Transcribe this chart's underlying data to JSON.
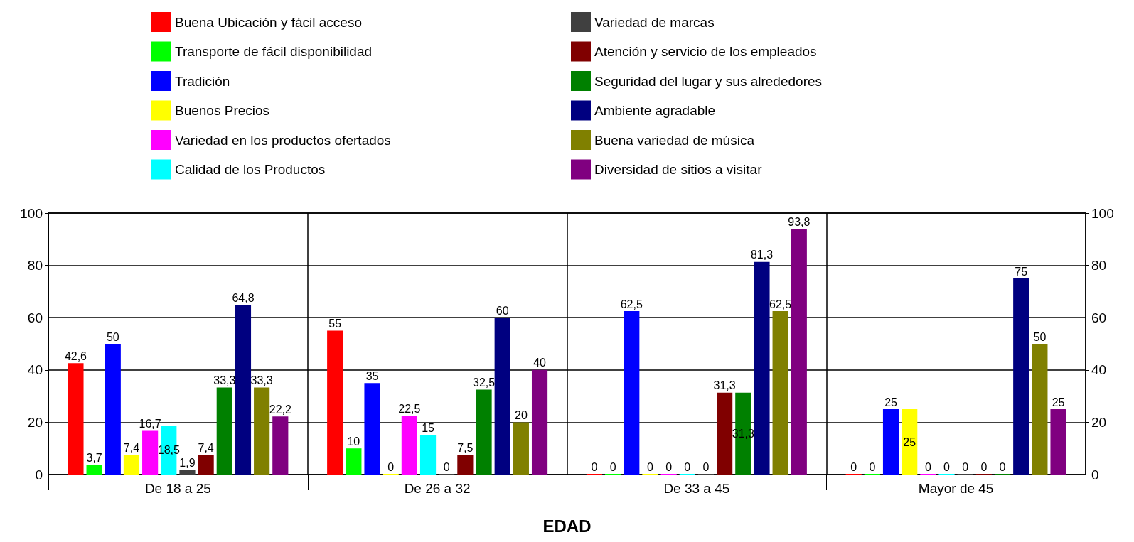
{
  "chart_data": {
    "type": "bar",
    "xlabel": "EDAD",
    "categories": [
      "De 18 a 25",
      "De 26 a 32",
      "De 33 a 45",
      "Mayor de 45"
    ],
    "series": [
      {
        "name": "Buena Ubicación y fácil acceso",
        "color": "#ff0000",
        "values": [
          42.6,
          55,
          0,
          0
        ],
        "value_labels": [
          "42,6",
          "55",
          "0",
          "0"
        ]
      },
      {
        "name": "Transporte de fácil disponibilidad",
        "color": "#00ff00",
        "values": [
          3.7,
          10,
          0,
          0
        ],
        "value_labels": [
          "3,7",
          "10",
          "0",
          "0"
        ]
      },
      {
        "name": "Tradición",
        "color": "#0000ff",
        "values": [
          50,
          35,
          62.5,
          25
        ],
        "value_labels": [
          "50",
          "35",
          "62,5",
          "25"
        ]
      },
      {
        "name": "Buenos Precios",
        "color": "#ffff00",
        "values": [
          7.4,
          0,
          0,
          25
        ],
        "value_labels": [
          "7,4",
          "0",
          "0",
          "25"
        ]
      },
      {
        "name": "Variedad en los productos ofertados",
        "color": "#ff00ff",
        "values": [
          16.7,
          22.5,
          0,
          0
        ],
        "value_labels": [
          "16,7",
          "22,5",
          "0",
          "0"
        ]
      },
      {
        "name": "Calidad de los Productos",
        "color": "#00ffff",
        "values": [
          18.5,
          15,
          0,
          0
        ],
        "value_labels": [
          "18,5",
          "15",
          "0",
          "0"
        ]
      },
      {
        "name": "Variedad de marcas",
        "color": "#404040",
        "values": [
          1.9,
          0,
          0,
          0
        ],
        "value_labels": [
          "1,9",
          "0",
          "0",
          "0"
        ]
      },
      {
        "name": "Atención y servicio de los empleados",
        "color": "#800000",
        "values": [
          7.4,
          7.5,
          31.3,
          0
        ],
        "value_labels": [
          "7,4",
          "7,5",
          "31,3",
          "0"
        ]
      },
      {
        "name": "Seguridad del lugar y sus alrededores",
        "color": "#008000",
        "values": [
          33.3,
          32.5,
          31.3,
          0
        ],
        "value_labels": [
          "33,3",
          "32,5",
          "31,3",
          "0"
        ]
      },
      {
        "name": "Ambiente agradable",
        "color": "#000080",
        "values": [
          64.8,
          60,
          81.3,
          75
        ],
        "value_labels": [
          "64,8",
          "60",
          "81,3",
          "75"
        ]
      },
      {
        "name": "Buena variedad de música",
        "color": "#808000",
        "values": [
          33.3,
          20,
          62.5,
          50
        ],
        "value_labels": [
          "33,3",
          "20",
          "62,5",
          "50"
        ]
      },
      {
        "name": "Diversidad de sitios a visitar",
        "color": "#800080",
        "values": [
          22.2,
          40,
          93.8,
          25
        ],
        "value_labels": [
          "22,2",
          "40",
          "93,8",
          "25"
        ]
      }
    ],
    "ylim": [
      0,
      100
    ],
    "yticks": [
      0,
      20,
      40,
      60,
      80,
      100
    ],
    "y2lim": [
      0,
      100
    ],
    "y2ticks": [
      0,
      20,
      40,
      60,
      80,
      100
    ],
    "grid": true,
    "legend": "top"
  }
}
